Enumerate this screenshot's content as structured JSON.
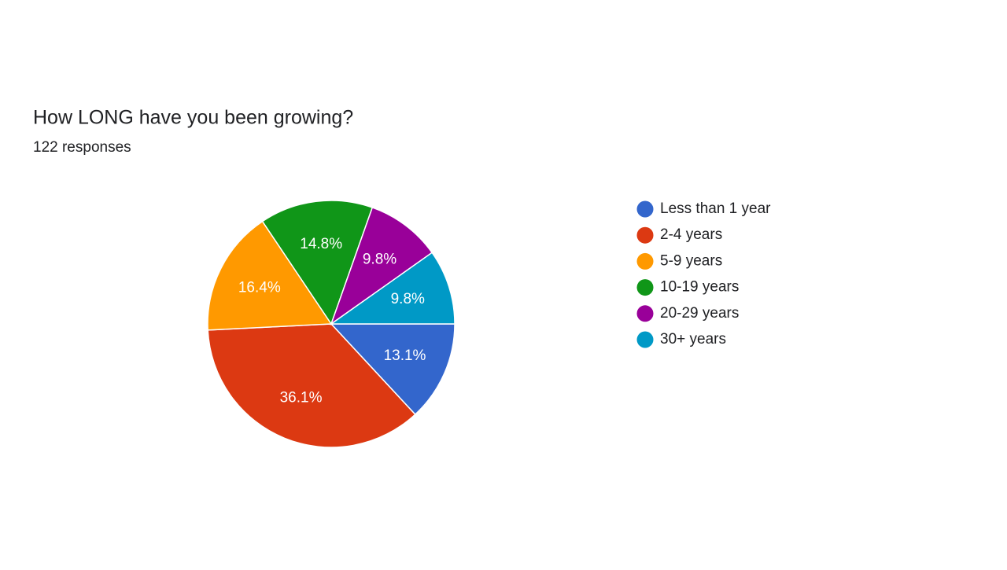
{
  "chart_data": {
    "type": "pie",
    "title": "How LONG have you been growing?",
    "subtitle": "122 responses",
    "categories": [
      "Less than 1 year",
      "2-4 years",
      "5-9 years",
      "10-19 years",
      "20-29 years",
      "30+ years"
    ],
    "values": [
      13.1,
      36.1,
      16.4,
      14.8,
      9.8,
      9.8
    ],
    "value_labels": [
      "13.1%",
      "36.1%",
      "16.4%",
      "14.8%",
      "9.8%",
      "9.8%"
    ],
    "colors": [
      "#3366cc",
      "#dc3912",
      "#ff9900",
      "#109618",
      "#990099",
      "#0099c6"
    ],
    "legend": "right"
  }
}
